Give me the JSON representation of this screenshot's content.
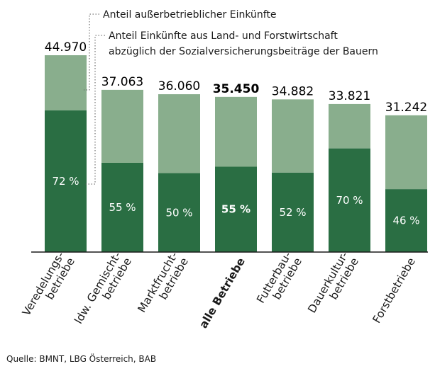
{
  "chart_data": {
    "type": "bar",
    "stacked": true,
    "categories": [
      {
        "label": [
          "Veredelungs-",
          "betriebe"
        ],
        "bold": false
      },
      {
        "label": [
          "ldw. Gemischt-",
          "betriebe"
        ],
        "bold": false
      },
      {
        "label": [
          "Marktfrucht-",
          "betriebe"
        ],
        "bold": false
      },
      {
        "label": [
          "alle Betriebe"
        ],
        "bold": true
      },
      {
        "label": [
          "Futterbau-",
          "betriebe"
        ],
        "bold": false
      },
      {
        "label": [
          "Dauerkultur-",
          "betriebe"
        ],
        "bold": false
      },
      {
        "label": [
          "Forstbetriebe"
        ],
        "bold": false
      }
    ],
    "totals": [
      44970,
      37063,
      36060,
      35450,
      34882,
      33821,
      31242
    ],
    "total_labels": [
      "44.970",
      "37.063",
      "36.060",
      "35.450",
      "34.882",
      "33.821",
      "31.242"
    ],
    "share_agri_forestry_percent": [
      72,
      55,
      50,
      55,
      52,
      70,
      46
    ],
    "share_labels": [
      "72 %",
      "55 %",
      "50 %",
      "55 %",
      "52 %",
      "70 %",
      "46 %"
    ],
    "series": [
      {
        "name": "Anteil Einkünfte aus Land- und Forstwirtschaft abzüglich der Sozialversicherungsbeiträge der Bauern",
        "color": "#2a6e43"
      },
      {
        "name": "Anteil außerbetrieblicher Einkünfte",
        "color": "#89ae8d"
      }
    ],
    "legend_lines": {
      "outside": [
        "Anteil außerbetrieblicher Einkünfte"
      ],
      "agri": [
        "Anteil Einkünfte aus Land- und Forstwirtschaft",
        "abzüglich der Sozialversicherungsbeiträge der Bauern"
      ]
    },
    "ylim": [
      0,
      44970
    ]
  },
  "source": "Quelle: BMNT, LBG Österreich, BAB"
}
